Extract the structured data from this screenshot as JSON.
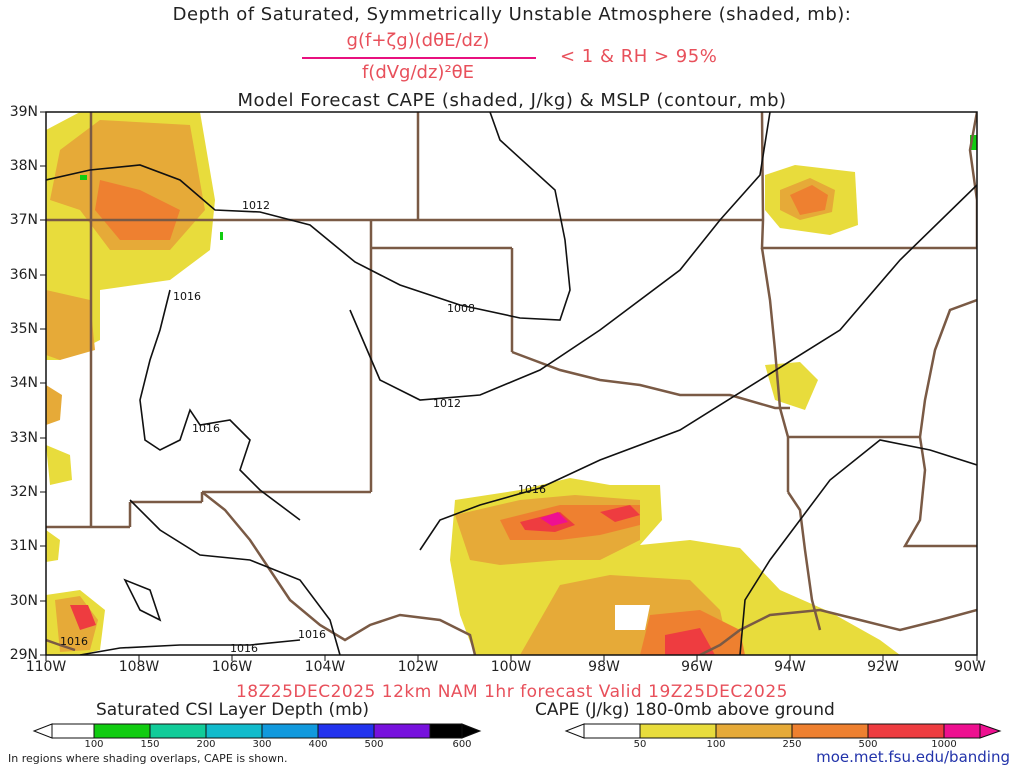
{
  "header": {
    "title": "Depth of Saturated, Symmetrically Unstable Atmosphere (shaded, mb):",
    "formula_numerator": "g(f+ζg)(dθE/dz)",
    "formula_denominator": "f(dVg/dz)²θE",
    "formula_condition": "< 1 & RH > 95%",
    "subtitle": "Model Forecast CAPE (shaded, J/kg) & MSLP (contour, mb)"
  },
  "map": {
    "lat_labels": [
      "39N",
      "38N",
      "37N",
      "36N",
      "35N",
      "34N",
      "33N",
      "32N",
      "31N",
      "30N",
      "29N"
    ],
    "lon_labels": [
      "110W",
      "108W",
      "106W",
      "104W",
      "102W",
      "100W",
      "98W",
      "96W",
      "94W",
      "92W",
      "90W"
    ],
    "contour_labels": [
      "1012",
      "1016",
      "1008",
      "1012",
      "1016",
      "1016",
      "1016",
      "1016",
      "1016"
    ]
  },
  "footer": {
    "valid": "18Z25DEC2025 12km NAM 1hr forecast Valid 19Z25DEC2025",
    "left_legend_title": "Saturated CSI Layer Depth (mb)",
    "right_legend_title": "CAPE (J/kg) 180-0mb above ground",
    "note": "In regions where shading overlaps, CAPE is shown.",
    "credit": "moe.met.fsu.edu/banding"
  },
  "legends": {
    "csi": {
      "ticks": [
        "100",
        "150",
        "200",
        "300",
        "400",
        "500",
        "600"
      ],
      "colors": [
        "#ffffff",
        "#11cc11",
        "#11cc99",
        "#11bbcc",
        "#1199dd",
        "#2233ee",
        "#7711dd",
        "#000000"
      ]
    },
    "cape": {
      "ticks": [
        "50",
        "100",
        "250",
        "500",
        "1000"
      ],
      "colors": [
        "#ffffff",
        "#e8dc3c",
        "#e6aa38",
        "#ee8030",
        "#ee3c40",
        "#ee1090"
      ]
    }
  }
}
